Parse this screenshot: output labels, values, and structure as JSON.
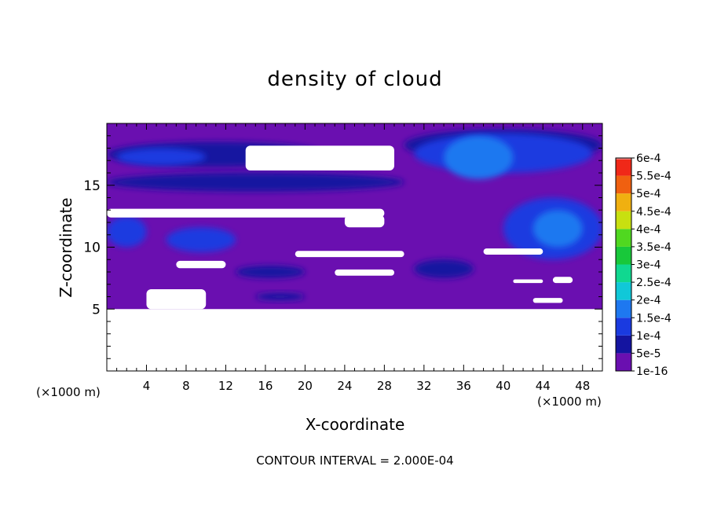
{
  "title": "density of cloud",
  "xlabel": "X-coordinate",
  "ylabel": "Z-coordinate",
  "x_unit_left": "(×1000 m)",
  "x_unit_right": "(×1000 m)",
  "contour_interval": "CONTOUR INTERVAL = 2.000E-04",
  "chart_data": {
    "type": "heatmap",
    "xlim": [
      0,
      50
    ],
    "ylim": [
      0,
      20
    ],
    "x_ticks": [
      4,
      8,
      12,
      16,
      20,
      24,
      28,
      32,
      36,
      40,
      44,
      48
    ],
    "y_ticks": [
      5,
      10,
      15
    ],
    "colorbar": {
      "labels": [
        "1e-16",
        "5e-5",
        "1e-4",
        "1.5e-4",
        "2e-4",
        "2.5e-4",
        "3e-4",
        "3.5e-4",
        "4e-4",
        "4.5e-4",
        "5e-4",
        "5.5e-4",
        "6e-4"
      ],
      "colors": [
        "#6a0fb0",
        "#1414a0",
        "#1a3ae0",
        "#1e78f0",
        "#10c8d8",
        "#10d890",
        "#18c83a",
        "#50d820",
        "#c8e010",
        "#f0b010",
        "#f06010",
        "#f02818",
        "#f08080"
      ]
    },
    "background_color": "#6a0fb0",
    "regions": [
      {
        "level": "5e-5",
        "x": [
          0,
          22
        ],
        "y": [
          16.5,
          18.5
        ]
      },
      {
        "level": "5e-5",
        "x": [
          0,
          30
        ],
        "y": [
          14.5,
          16
        ]
      },
      {
        "level": "1e-4",
        "x": [
          1,
          10
        ],
        "y": [
          16.6,
          18
        ]
      },
      {
        "level": "1e-4",
        "x": [
          0,
          4
        ],
        "y": [
          10,
          12.5
        ]
      },
      {
        "level": "1e-4",
        "x": [
          6,
          13
        ],
        "y": [
          9.6,
          11.6
        ]
      },
      {
        "level": "5e-5",
        "x": [
          30,
          50
        ],
        "y": [
          17,
          19.5
        ]
      },
      {
        "level": "1e-4",
        "x": [
          31,
          49
        ],
        "y": [
          16,
          19.2
        ]
      },
      {
        "level": "1.5e-4",
        "x": [
          34,
          41
        ],
        "y": [
          15.5,
          19
        ]
      },
      {
        "level": "1e-4",
        "x": [
          40,
          50
        ],
        "y": [
          9,
          14
        ]
      },
      {
        "level": "1.5e-4",
        "x": [
          43,
          48
        ],
        "y": [
          10,
          13
        ]
      },
      {
        "level": "5e-5",
        "x": [
          31,
          37
        ],
        "y": [
          7.5,
          9
        ]
      },
      {
        "level": "5e-5",
        "x": [
          13,
          20
        ],
        "y": [
          7.5,
          8.5
        ]
      },
      {
        "level": "5e-5",
        "x": [
          15,
          20
        ],
        "y": [
          5.7,
          6.3
        ]
      }
    ],
    "blank_regions": [
      {
        "x": [
          0,
          50
        ],
        "y": [
          0,
          5
        ]
      },
      {
        "x": [
          14,
          29
        ],
        "y": [
          16.2,
          18.2
        ]
      },
      {
        "x": [
          0,
          28
        ],
        "y": [
          12.4,
          13.1
        ]
      },
      {
        "x": [
          24,
          28
        ],
        "y": [
          11.6,
          12.6
        ]
      },
      {
        "x": [
          7,
          12
        ],
        "y": [
          8.3,
          8.9
        ]
      },
      {
        "x": [
          19,
          30
        ],
        "y": [
          9.2,
          9.7
        ]
      },
      {
        "x": [
          38,
          44
        ],
        "y": [
          9.4,
          9.9
        ]
      },
      {
        "x": [
          23,
          29
        ],
        "y": [
          7.7,
          8.2
        ]
      },
      {
        "x": [
          4,
          10
        ],
        "y": [
          5.0,
          6.6
        ]
      },
      {
        "x": [
          41,
          44
        ],
        "y": [
          7.1,
          7.4
        ]
      },
      {
        "x": [
          45,
          47
        ],
        "y": [
          7.1,
          7.6
        ]
      },
      {
        "x": [
          43,
          46
        ],
        "y": [
          5.5,
          5.9
        ]
      }
    ]
  }
}
